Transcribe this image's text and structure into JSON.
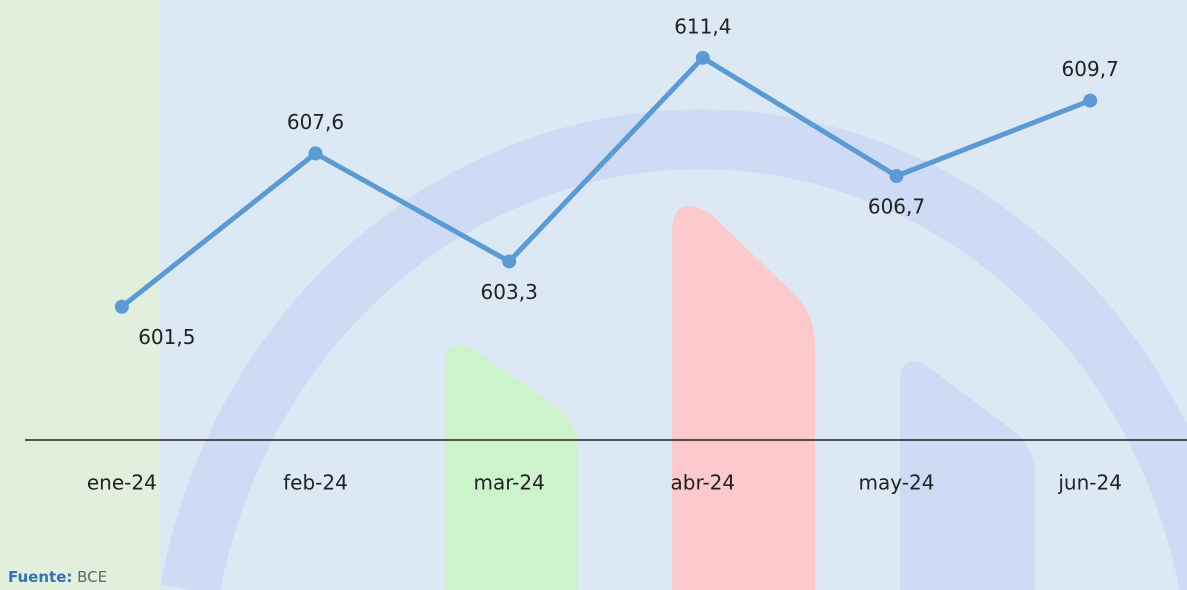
{
  "chart_data": {
    "type": "line",
    "categories": [
      "ene-24",
      "feb-24",
      "mar-24",
      "abr-24",
      "may-24",
      "jun-24"
    ],
    "series": [
      {
        "color": "#5b9bd5",
        "values": [
          601.5,
          607.6,
          603.3,
          611.4,
          606.7,
          609.7
        ],
        "value_labels": [
          "601,5",
          "607,6",
          "603,3",
          "611,4",
          "606,7",
          "609,7"
        ]
      }
    ],
    "ylim": [
      596.2,
      613.7
    ]
  },
  "source": {
    "label": "Fuente:",
    "text": "BCE"
  }
}
